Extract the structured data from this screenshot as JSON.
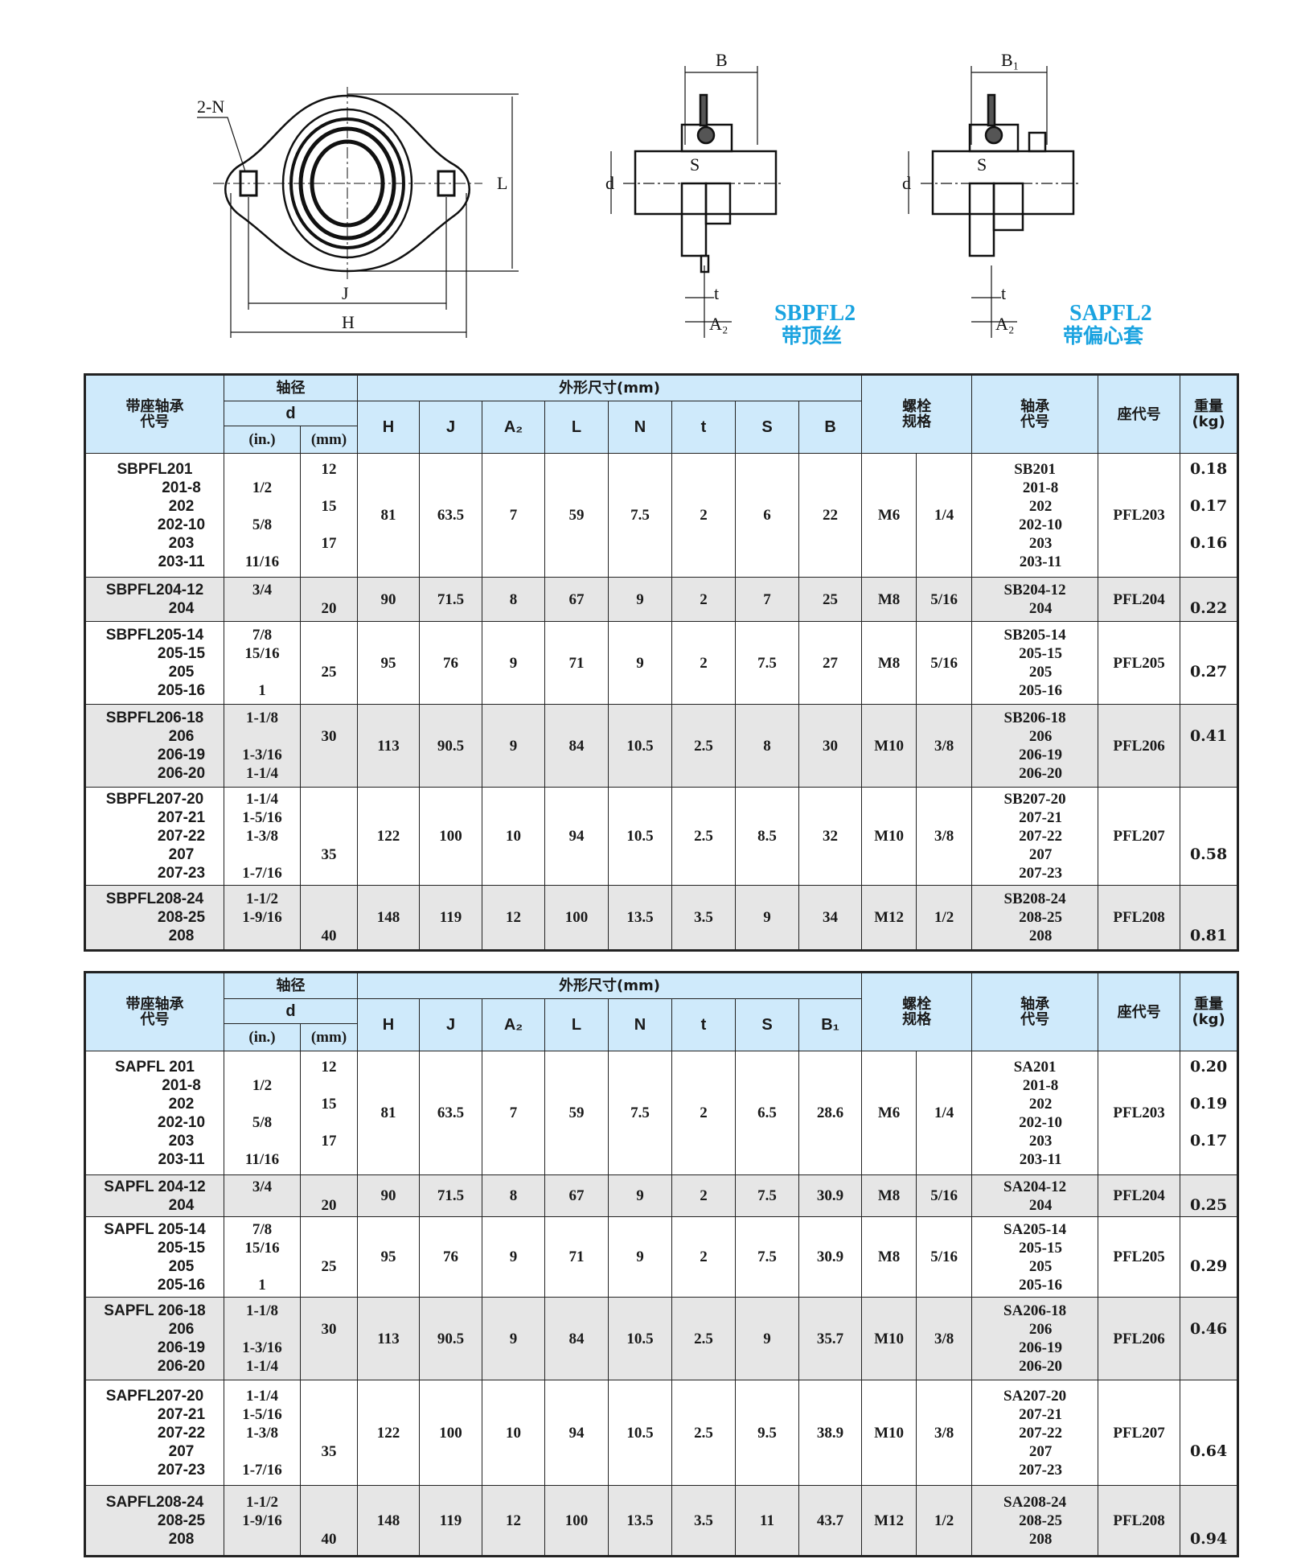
{
  "drawing": {
    "labels": {
      "holes": "2-N",
      "B": "B",
      "B1": "B₁",
      "d": "d",
      "S": "S",
      "t": "t",
      "A2": "A₂",
      "J": "J",
      "H": "H",
      "L": "L"
    },
    "sbpfl_title": "SBPFL2",
    "sbpfl_subtitle": "带顶丝",
    "sapfl_title": "SAPFL2",
    "sapfl_subtitle": "带偏心套",
    "accent_color": "#1aa3e0"
  },
  "tables": [
    {
      "headers": {
        "model": "带座轴承\n代号",
        "shaft": "轴径",
        "d": "d",
        "in": "(in.)",
        "mm": "(mm)",
        "dims_group": "外形尺寸(mm)",
        "dims": [
          "H",
          "J",
          "A₂",
          "L",
          "N",
          "t",
          "S",
          "B"
        ],
        "bolt": "螺栓\n规格",
        "bearing": "轴承\n代号",
        "housing": "座代号",
        "weight": "重量\n(kg)"
      },
      "rows": [
        {
          "models": [
            "SBPFL201",
            "201-8",
            "202",
            "202-10",
            "203",
            "203-11"
          ],
          "inch": [
            "",
            "1/2",
            "",
            "5/8",
            "",
            "11/16"
          ],
          "mm": [
            "12",
            "",
            "15",
            "",
            "17",
            ""
          ],
          "dims": [
            "81",
            "63.5",
            "7",
            "59",
            "7.5",
            "2",
            "6",
            "22"
          ],
          "bolt": "M6",
          "bolt_in": "1/4",
          "bearings": [
            "SB201",
            "201-8",
            "202",
            "202-10",
            "203",
            "203-11"
          ],
          "housing": "PFL203",
          "weight": [
            "0.18",
            "",
            "0.17",
            "",
            "0.16",
            ""
          ]
        },
        {
          "models": [
            "SBPFL204-12",
            "204"
          ],
          "inch": [
            "3/4",
            ""
          ],
          "mm": [
            "",
            "20"
          ],
          "dims": [
            "90",
            "71.5",
            "8",
            "67",
            "9",
            "2",
            "7",
            "25"
          ],
          "bolt": "M8",
          "bolt_in": "5/16",
          "bearings": [
            "SB204-12",
            "204"
          ],
          "housing": "PFL204",
          "weight": [
            "",
            "0.22"
          ]
        },
        {
          "models": [
            "SBPFL205-14",
            "205-15",
            "205",
            "205-16"
          ],
          "inch": [
            "7/8",
            "15/16",
            "",
            "1"
          ],
          "mm": [
            "",
            "",
            "25",
            ""
          ],
          "dims": [
            "95",
            "76",
            "9",
            "71",
            "9",
            "2",
            "7.5",
            "27"
          ],
          "bolt": "M8",
          "bolt_in": "5/16",
          "bearings": [
            "SB205-14",
            "205-15",
            "205",
            "205-16"
          ],
          "housing": "PFL205",
          "weight": [
            "",
            "",
            "0.27",
            ""
          ]
        },
        {
          "models": [
            "SBPFL206-18",
            "206",
            "206-19",
            "206-20"
          ],
          "inch": [
            "1-1/8",
            "",
            "1-3/16",
            "1-1/4"
          ],
          "mm": [
            "",
            "30",
            "",
            ""
          ],
          "dims": [
            "113",
            "90.5",
            "9",
            "84",
            "10.5",
            "2.5",
            "8",
            "30"
          ],
          "bolt": "M10",
          "bolt_in": "3/8",
          "bearings": [
            "SB206-18",
            "206",
            "206-19",
            "206-20"
          ],
          "housing": "PFL206",
          "weight": [
            "",
            "0.41",
            "",
            ""
          ]
        },
        {
          "models": [
            "SBPFL207-20",
            "207-21",
            "207-22",
            "207",
            "207-23"
          ],
          "inch": [
            "1-1/4",
            "1-5/16",
            "1-3/8",
            "",
            "1-7/16"
          ],
          "mm": [
            "",
            "",
            "",
            "35",
            ""
          ],
          "dims": [
            "122",
            "100",
            "10",
            "94",
            "10.5",
            "2.5",
            "8.5",
            "32"
          ],
          "bolt": "M10",
          "bolt_in": "3/8",
          "bearings": [
            "SB207-20",
            "207-21",
            "207-22",
            "207",
            "207-23"
          ],
          "housing": "PFL207",
          "weight": [
            "",
            "",
            "",
            "0.58",
            ""
          ]
        },
        {
          "models": [
            "SBPFL208-24",
            "208-25",
            "208"
          ],
          "inch": [
            "1-1/2",
            "1-9/16",
            ""
          ],
          "mm": [
            "",
            "",
            "40"
          ],
          "dims": [
            "148",
            "119",
            "12",
            "100",
            "13.5",
            "3.5",
            "9",
            "34"
          ],
          "bolt": "M12",
          "bolt_in": "1/2",
          "bearings": [
            "SB208-24",
            "208-25",
            "208"
          ],
          "housing": "PFL208",
          "weight": [
            "",
            "",
            "0.81"
          ]
        }
      ]
    },
    {
      "headers": {
        "model": "带座轴承\n代号",
        "shaft": "轴径",
        "d": "d",
        "in": "(in.)",
        "mm": "(mm)",
        "dims_group": "外形尺寸(mm)",
        "dims": [
          "H",
          "J",
          "A₂",
          "L",
          "N",
          "t",
          "S",
          "B₁"
        ],
        "bolt": "螺栓\n规格",
        "bearing": "轴承\n代号",
        "housing": "座代号",
        "weight": "重量\n(kg)"
      },
      "rows": [
        {
          "models": [
            "SAPFL 201",
            "201-8",
            "202",
            "202-10",
            "203",
            "203-11"
          ],
          "inch": [
            "",
            "1/2",
            "",
            "5/8",
            "",
            "11/16"
          ],
          "mm": [
            "12",
            "",
            "15",
            "",
            "17",
            ""
          ],
          "dims": [
            "81",
            "63.5",
            "7",
            "59",
            "7.5",
            "2",
            "6.5",
            "28.6"
          ],
          "bolt": "M6",
          "bolt_in": "1/4",
          "bearings": [
            "SA201",
            "201-8",
            "202",
            "202-10",
            "203",
            "203-11"
          ],
          "housing": "PFL203",
          "weight": [
            "0.20",
            "",
            "0.19",
            "",
            "0.17",
            ""
          ]
        },
        {
          "models": [
            "SAPFL 204-12",
            "204"
          ],
          "inch": [
            "3/4",
            ""
          ],
          "mm": [
            "",
            "20"
          ],
          "dims": [
            "90",
            "71.5",
            "8",
            "67",
            "9",
            "2",
            "7.5",
            "30.9"
          ],
          "bolt": "M8",
          "bolt_in": "5/16",
          "bearings": [
            "SA204-12",
            "204"
          ],
          "housing": "PFL204",
          "weight": [
            "",
            "0.25"
          ]
        },
        {
          "models": [
            "SAPFL 205-14",
            "205-15",
            "205",
            "205-16"
          ],
          "inch": [
            "7/8",
            "15/16",
            "",
            "1"
          ],
          "mm": [
            "",
            "",
            "25",
            ""
          ],
          "dims": [
            "95",
            "76",
            "9",
            "71",
            "9",
            "2",
            "7.5",
            "30.9"
          ],
          "bolt": "M8",
          "bolt_in": "5/16",
          "bearings": [
            "SA205-14",
            "205-15",
            "205",
            "205-16"
          ],
          "housing": "PFL205",
          "weight": [
            "",
            "",
            "0.29",
            ""
          ]
        },
        {
          "models": [
            "SAPFL 206-18",
            "206",
            "206-19",
            "206-20"
          ],
          "inch": [
            "1-1/8",
            "",
            "1-3/16",
            "1-1/4"
          ],
          "mm": [
            "",
            "30",
            "",
            ""
          ],
          "dims": [
            "113",
            "90.5",
            "9",
            "84",
            "10.5",
            "2.5",
            "9",
            "35.7"
          ],
          "bolt": "M10",
          "bolt_in": "3/8",
          "bearings": [
            "SA206-18",
            "206",
            "206-19",
            "206-20"
          ],
          "housing": "PFL206",
          "weight": [
            "",
            "0.46",
            "",
            ""
          ]
        },
        {
          "models": [
            "SAPFL207-20",
            "207-21",
            "207-22",
            "207",
            "207-23"
          ],
          "inch": [
            "1-1/4",
            "1-5/16",
            "1-3/8",
            "",
            "1-7/16"
          ],
          "mm": [
            "",
            "",
            "",
            "35",
            ""
          ],
          "dims": [
            "122",
            "100",
            "10",
            "94",
            "10.5",
            "2.5",
            "9.5",
            "38.9"
          ],
          "bolt": "M10",
          "bolt_in": "3/8",
          "bearings": [
            "SA207-20",
            "207-21",
            "207-22",
            "207",
            "207-23"
          ],
          "housing": "PFL207",
          "weight": [
            "",
            "",
            "",
            "0.64",
            ""
          ]
        },
        {
          "models": [
            "SAPFL208-24",
            "208-25",
            "208"
          ],
          "inch": [
            "1-1/2",
            "1-9/16",
            ""
          ],
          "mm": [
            "",
            "",
            "40"
          ],
          "dims": [
            "148",
            "119",
            "12",
            "100",
            "13.5",
            "3.5",
            "11",
            "43.7"
          ],
          "bolt": "M12",
          "bolt_in": "1/2",
          "bearings": [
            "SA208-24",
            "208-25",
            "208"
          ],
          "housing": "PFL208",
          "weight": [
            "",
            "",
            "0.94"
          ]
        }
      ]
    }
  ]
}
